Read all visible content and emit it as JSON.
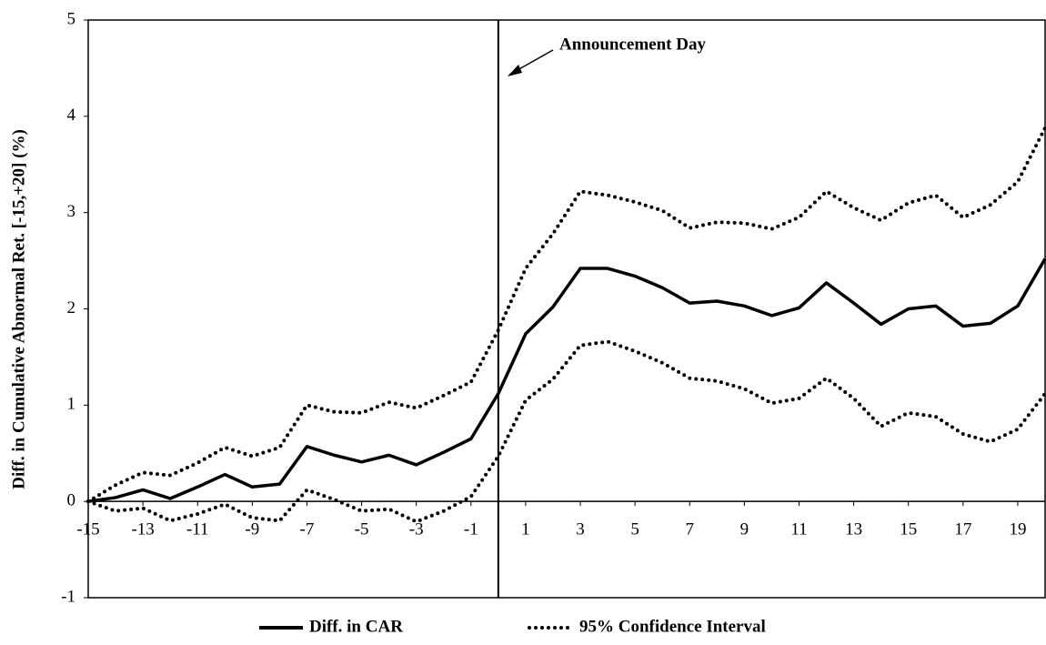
{
  "chart_data": {
    "type": "line",
    "y_label": "Diff. in Cumulative Abnormal Ret. [-15,+20] (%)",
    "x": [
      -15,
      -14,
      -13,
      -12,
      -11,
      -10,
      -9,
      -8,
      -7,
      -6,
      -5,
      -4,
      -3,
      -2,
      -1,
      0,
      1,
      2,
      3,
      4,
      5,
      6,
      7,
      8,
      9,
      10,
      11,
      12,
      13,
      14,
      15,
      16,
      17,
      18,
      19,
      20
    ],
    "series": [
      {
        "name": "Diff. in CAR",
        "color": "#000000",
        "values": [
          0.0,
          0.04,
          0.12,
          0.03,
          0.15,
          0.28,
          0.15,
          0.18,
          0.57,
          0.48,
          0.41,
          0.48,
          0.38,
          0.51,
          0.65,
          1.12,
          1.74,
          2.02,
          2.42,
          2.42,
          2.34,
          2.22,
          2.06,
          2.08,
          2.03,
          1.93,
          2.01,
          2.27,
          2.06,
          1.84,
          2.0,
          2.03,
          1.82,
          1.85,
          2.03,
          2.52
        ]
      },
      {
        "name": "95% Confidence Interval",
        "color": "#000000",
        "upper": [
          0.0,
          0.17,
          0.3,
          0.27,
          0.4,
          0.56,
          0.47,
          0.56,
          1.0,
          0.93,
          0.92,
          1.03,
          0.97,
          1.1,
          1.24,
          1.78,
          2.42,
          2.78,
          3.22,
          3.18,
          3.11,
          3.02,
          2.84,
          2.9,
          2.89,
          2.83,
          2.95,
          3.22,
          3.05,
          2.92,
          3.1,
          3.18,
          2.95,
          3.08,
          3.32,
          3.88
        ],
        "lower": [
          0.0,
          -0.1,
          -0.07,
          -0.2,
          -0.13,
          -0.03,
          -0.17,
          -0.2,
          0.12,
          0.02,
          -0.1,
          -0.08,
          -0.21,
          -0.1,
          0.05,
          0.47,
          1.05,
          1.27,
          1.62,
          1.66,
          1.56,
          1.44,
          1.28,
          1.25,
          1.17,
          1.02,
          1.07,
          1.28,
          1.07,
          0.78,
          0.92,
          0.88,
          0.7,
          0.62,
          0.75,
          1.12
        ]
      }
    ],
    "annotation": {
      "text": "Announcement Day",
      "x": 0
    },
    "xlim": [
      -15,
      20
    ],
    "xticks": [
      -15,
      -13,
      -11,
      -9,
      -7,
      -5,
      -3,
      -1,
      1,
      3,
      5,
      7,
      9,
      11,
      13,
      15,
      17,
      19
    ],
    "ylim": [
      -1,
      5
    ],
    "yticks": [
      -1,
      0,
      1,
      2,
      3,
      4,
      5
    ],
    "grid": false
  }
}
